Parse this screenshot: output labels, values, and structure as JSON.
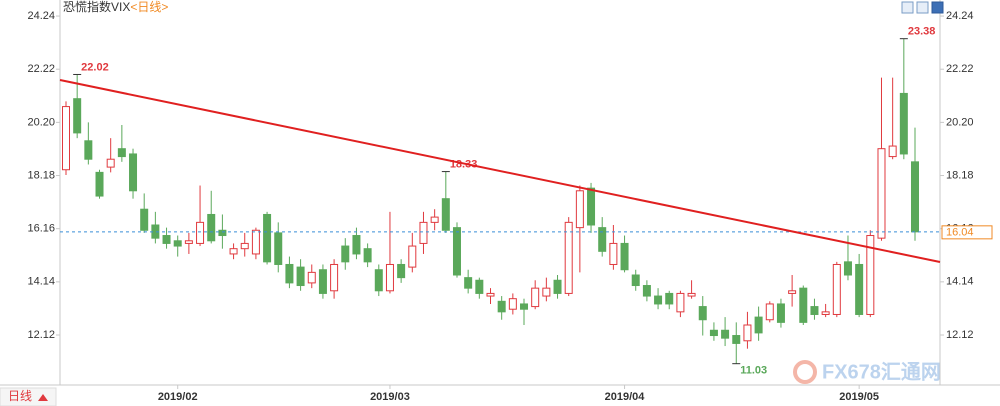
{
  "chart_data": {
    "type": "candlestick",
    "title": "恐慌指数VIX",
    "subtitle": "<日线>",
    "period": "日线",
    "watermark": "FX678汇通网",
    "categories": [
      null,
      null,
      null,
      null,
      null,
      null,
      null,
      null,
      null,
      null,
      "2019/02",
      null,
      null,
      null,
      null,
      null,
      null,
      null,
      null,
      null,
      null,
      null,
      null,
      null,
      null,
      null,
      null,
      null,
      null,
      "2019/03",
      null,
      null,
      null,
      null,
      null,
      null,
      null,
      null,
      null,
      null,
      null,
      null,
      null,
      null,
      null,
      null,
      null,
      null,
      null,
      null,
      "2019/04",
      null,
      null,
      null,
      null,
      null,
      null,
      null,
      null,
      null,
      null,
      null,
      null,
      null,
      null,
      null,
      null,
      null,
      null,
      null,
      null,
      "2019/05",
      null,
      null,
      null,
      null,
      null
    ],
    "open": [
      18.4,
      21.1,
      19.5,
      18.3,
      18.5,
      19.2,
      19.0,
      16.9,
      16.3,
      15.9,
      15.7,
      15.6,
      15.6,
      16.7,
      16.1,
      15.2,
      15.4,
      15.2,
      16.7,
      16.0,
      14.8,
      14.7,
      14.1,
      14.6,
      13.8,
      15.5,
      15.9,
      15.4,
      14.6,
      13.8,
      14.8,
      14.7,
      15.6,
      16.4,
      17.3,
      16.2,
      14.3,
      14.2,
      13.6,
      13.4,
      13.1,
      13.3,
      13.2,
      13.6,
      14.2,
      13.7,
      16.2,
      17.7,
      16.2,
      14.8,
      15.6,
      14.4,
      14.0,
      13.6,
      13.7,
      13.0,
      13.6,
      13.2,
      12.3,
      12.3,
      12.1,
      11.9,
      12.8,
      12.7,
      13.3,
      13.7,
      13.9,
      13.2,
      12.9,
      12.9,
      14.9,
      14.8,
      12.9,
      15.8,
      18.9,
      21.3,
      18.7
    ],
    "high": [
      21.0,
      22.02,
      20.2,
      18.4,
      19.6,
      20.1,
      19.2,
      17.5,
      16.8,
      16.2,
      15.9,
      16.0,
      17.8,
      17.6,
      16.7,
      15.6,
      16.0,
      16.2,
      16.8,
      16.4,
      15.1,
      15.0,
      14.8,
      14.8,
      15.0,
      15.8,
      16.2,
      15.6,
      14.8,
      16.8,
      15.0,
      16.0,
      16.8,
      16.9,
      18.33,
      16.4,
      14.6,
      14.3,
      13.9,
      13.6,
      13.7,
      13.5,
      14.2,
      14.3,
      14.4,
      16.6,
      17.8,
      17.9,
      16.6,
      16.3,
      15.9,
      14.6,
      14.2,
      13.9,
      13.8,
      13.8,
      14.2,
      13.6,
      12.6,
      12.8,
      12.6,
      13.0,
      13.2,
      13.4,
      13.5,
      14.4,
      14.0,
      13.5,
      13.3,
      14.9,
      15.9,
      15.2,
      16.1,
      21.9,
      21.9,
      23.38,
      20.0
    ],
    "low": [
      18.2,
      19.6,
      18.6,
      17.3,
      18.3,
      18.7,
      17.3,
      16.0,
      15.6,
      15.4,
      15.1,
      15.2,
      15.5,
      15.6,
      15.4,
      15.0,
      15.1,
      15.0,
      14.8,
      14.5,
      13.9,
      13.8,
      13.9,
      13.5,
      13.5,
      14.6,
      15.0,
      14.7,
      13.6,
      13.7,
      14.1,
      14.5,
      15.2,
      16.1,
      16.0,
      14.3,
      13.7,
      13.5,
      13.3,
      12.7,
      12.9,
      12.5,
      13.1,
      13.4,
      13.5,
      13.6,
      14.5,
      16.0,
      15.1,
      14.6,
      14.5,
      13.8,
      13.4,
      13.1,
      13.1,
      12.8,
      13.5,
      12.1,
      11.9,
      11.7,
      11.03,
      11.6,
      11.9,
      12.6,
      12.4,
      13.2,
      12.5,
      12.7,
      12.8,
      12.8,
      14.2,
      12.8,
      12.8,
      15.7,
      18.8,
      18.8,
      15.7
    ],
    "close": [
      20.8,
      19.8,
      18.8,
      17.4,
      18.8,
      18.9,
      17.6,
      16.1,
      15.8,
      15.6,
      15.5,
      15.7,
      16.4,
      15.7,
      15.9,
      15.4,
      15.6,
      16.1,
      14.9,
      14.8,
      14.1,
      14.0,
      14.5,
      13.7,
      14.8,
      14.9,
      15.2,
      14.9,
      13.8,
      14.8,
      14.3,
      15.5,
      16.4,
      16.6,
      16.1,
      14.4,
      13.9,
      13.7,
      13.7,
      13.0,
      13.5,
      13.1,
      13.9,
      13.9,
      13.7,
      16.4,
      17.6,
      16.3,
      15.3,
      15.6,
      14.6,
      14.0,
      13.6,
      13.3,
      13.3,
      13.7,
      13.7,
      12.7,
      12.1,
      12.0,
      11.8,
      12.5,
      12.2,
      13.3,
      12.6,
      13.8,
      12.6,
      12.9,
      13.0,
      14.8,
      14.4,
      12.9,
      15.9,
      19.2,
      19.3,
      19.0,
      16.04
    ],
    "up_color": "#e0393e",
    "down_color": "#5aa85a",
    "ylim": [
      10.22,
      24.85
    ],
    "yticks": [
      12.12,
      14.14,
      16.16,
      18.18,
      {
        "value": 20.2,
        "label": "20.20"
      },
      22.22,
      24.24
    ]
  }
}
